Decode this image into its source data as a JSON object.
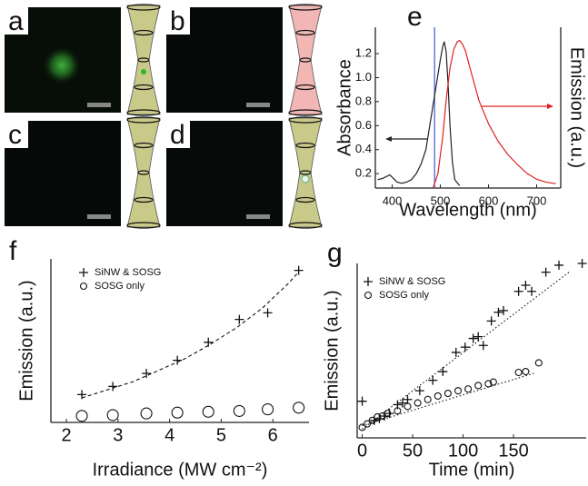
{
  "panel_labels": [
    "a",
    "b",
    "c",
    "d"
  ],
  "chart_data": [
    {
      "type": "line",
      "label": "e",
      "xlabel": "Wavelength (nm)",
      "ylabel": "Absorbance",
      "y2label": "Emission (a.u.)",
      "xlim": [
        365,
        750
      ],
      "xticks": [
        400,
        500,
        600,
        700
      ],
      "ylim": [
        0.08,
        1.42
      ],
      "yticks": [
        0.2,
        0.4,
        0.6,
        0.8,
        {
          "value": 1,
          "label": "1.0"
        },
        1.2
      ],
      "y2lim": [
        0,
        1.1
      ],
      "markers": [
        {
          "x": 488,
          "color": "#3a5ad0"
        }
      ],
      "series": [
        {
          "color": "#222222",
          "x": [
            370,
            380,
            390,
            395,
            400,
            410,
            420,
            430,
            440,
            450,
            460,
            470,
            480,
            490,
            500,
            505,
            508,
            512,
            516,
            520,
            525,
            530,
            540
          ],
          "values": [
            0.15,
            0.16,
            0.18,
            0.19,
            0.17,
            0.13,
            0.12,
            0.13,
            0.15,
            0.2,
            0.28,
            0.4,
            0.65,
            0.9,
            1.15,
            1.26,
            1.3,
            1.22,
            0.95,
            0.6,
            0.3,
            0.15,
            0.1
          ]
        },
        {
          "color": "#e02020",
          "axis": "y2",
          "x": [
            485,
            495,
            505,
            512,
            520,
            528,
            535,
            540,
            545,
            552,
            560,
            570,
            580,
            600,
            620,
            640,
            660,
            680,
            700,
            720,
            740
          ],
          "values": [
            0,
            0.1,
            0.35,
            0.6,
            0.82,
            0.95,
            1.0,
            1.01,
            0.99,
            0.94,
            0.84,
            0.72,
            0.6,
            0.44,
            0.32,
            0.23,
            0.16,
            0.1,
            0.06,
            0.04,
            0.03
          ]
        }
      ]
    },
    {
      "type": "scatter",
      "label": "f",
      "xlabel": "Irradiance (MW cm⁻²)",
      "ylabel": "Emission (a.u.)",
      "xlim": [
        1.7,
        6.7
      ],
      "xticks": [
        2,
        3,
        4,
        5,
        6
      ],
      "ylim": [
        0,
        1
      ],
      "series": [
        {
          "name": "SiNW & SOSG",
          "color": "#111111",
          "marker": "plus",
          "x": [
            2.3,
            2.9,
            3.55,
            4.15,
            4.75,
            5.35,
            5.9,
            6.5
          ],
          "values": [
            0.17,
            0.22,
            0.3,
            0.38,
            0.49,
            0.63,
            0.67,
            0.93
          ]
        },
        {
          "name": "SOSG only",
          "color": "#111111",
          "marker": "circle",
          "x": [
            2.3,
            2.9,
            3.55,
            4.15,
            4.75,
            5.35,
            5.9,
            6.5
          ],
          "values": [
            0.04,
            0.045,
            0.055,
            0.06,
            0.065,
            0.07,
            0.08,
            0.09
          ]
        },
        {
          "color": "#111111",
          "marker": "dashed",
          "x": [
            2.3,
            2.8,
            3.3,
            3.8,
            4.3,
            4.8,
            5.3,
            5.8,
            6.3,
            6.5
          ],
          "values": [
            0.15,
            0.2,
            0.25,
            0.32,
            0.39,
            0.48,
            0.58,
            0.7,
            0.85,
            0.92
          ]
        }
      ]
    },
    {
      "type": "scatter",
      "label": "g",
      "xlabel": "Time (min)",
      "ylabel": "Emission (a.u.)",
      "xlim": [
        -5,
        222
      ],
      "xticks": [
        0,
        50,
        100,
        150
      ],
      "ylim": [
        0,
        1
      ],
      "series": [
        {
          "name": "SiNW & SOSG",
          "color": "#111111",
          "marker": "plus",
          "x": [
            0,
            12,
            17,
            22,
            27,
            35,
            40,
            45,
            57,
            70,
            80,
            93,
            102,
            110,
            115,
            120,
            128,
            135,
            140,
            155,
            162,
            168,
            182,
            195,
            218
          ],
          "values": [
            0.21,
            0.1,
            0.11,
            0.125,
            0.14,
            0.19,
            0.2,
            0.22,
            0.27,
            0.33,
            0.38,
            0.49,
            0.52,
            0.57,
            0.58,
            0.53,
            0.67,
            0.72,
            0.73,
            0.84,
            0.875,
            0.84,
            0.95,
            0.99,
            1.0
          ]
        },
        {
          "name": "SOSG only",
          "color": "#111111",
          "marker": "circle",
          "x": [
            0,
            5,
            10,
            15,
            20,
            25,
            35,
            45,
            55,
            65,
            75,
            85,
            95,
            105,
            115,
            125,
            130,
            155,
            162,
            175
          ],
          "values": [
            0.06,
            0.08,
            0.1,
            0.12,
            0.125,
            0.14,
            0.155,
            0.18,
            0.2,
            0.22,
            0.24,
            0.255,
            0.27,
            0.28,
            0.3,
            0.31,
            0.32,
            0.375,
            0.38,
            0.43
          ]
        },
        {
          "color": "#111111",
          "marker": "dotted",
          "x": [
            0,
            205
          ],
          "values": [
            0.05,
            0.95
          ]
        },
        {
          "color": "#111111",
          "marker": "dotted",
          "x": [
            0,
            170
          ],
          "values": [
            0.07,
            0.37
          ]
        }
      ]
    }
  ]
}
